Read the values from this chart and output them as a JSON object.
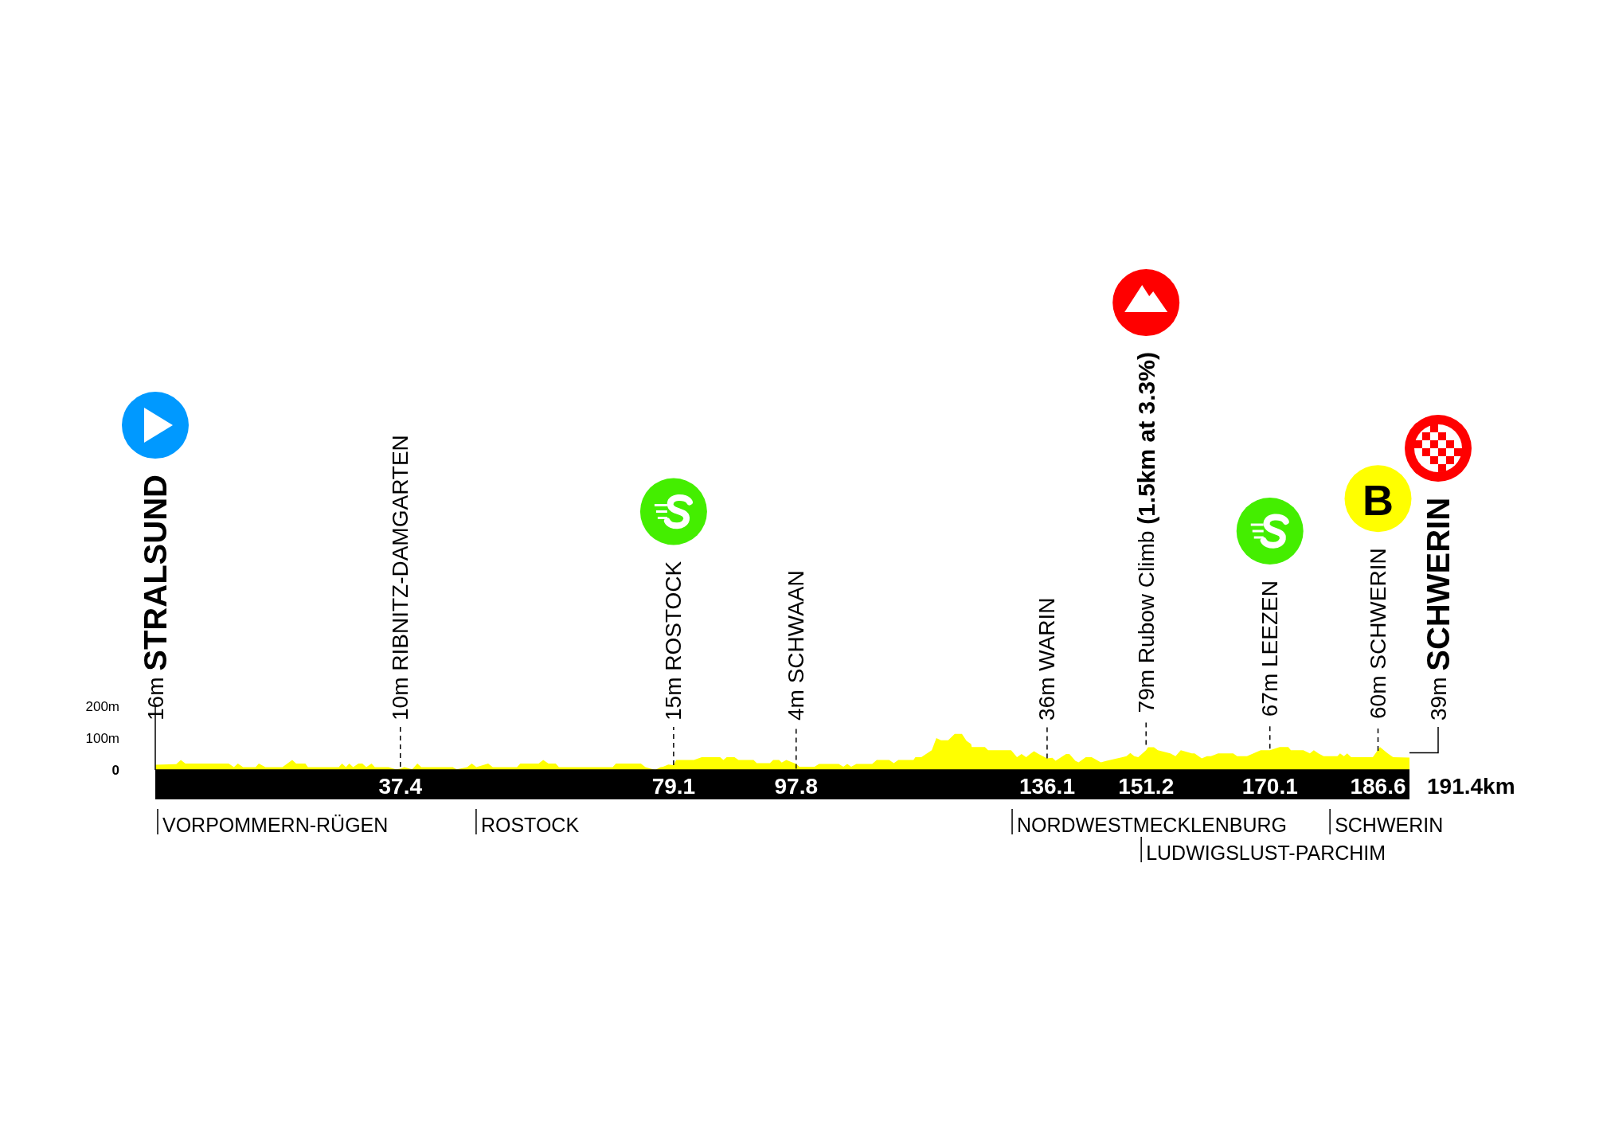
{
  "chart_data": {
    "type": "area",
    "xlim": [
      0,
      191.4
    ],
    "xticks": [
      37.4,
      79.1,
      97.8,
      136.1,
      151.2,
      170.1,
      186.6
    ],
    "ylim": [
      0,
      200
    ],
    "yticks": [
      {
        "value": 0,
        "label": "0"
      },
      {
        "value": 100,
        "label": "100m"
      },
      {
        "value": 200,
        "label": "200m"
      }
    ],
    "series": [
      {
        "color": "#ffff00",
        "x": [
          0,
          3.2,
          3.9,
          4.6,
          11.2,
          12.0,
          12.6,
          13.4,
          15.3,
          15.8,
          16.8,
          19.4,
          20.9,
          21.5,
          22.9,
          23.3,
          28.0,
          28.5,
          29.1,
          29.6,
          30.2,
          31.0,
          31.6,
          32.2,
          33.0,
          33.5,
          35.6,
          36.7,
          37.4,
          38.0,
          39.2,
          40.0,
          40.6,
          45.4,
          46.0,
          47.6,
          48.3,
          49,
          50.8,
          51.5,
          55.2,
          55.7,
          58.5,
          59.2,
          60,
          61.1,
          61.6,
          69.8,
          70.3,
          74.1,
          74.8,
          76.3,
          77.1,
          77.5,
          78.3,
          79.1,
          79.5,
          82.2,
          83.4,
          86.2,
          86.7,
          87.2,
          88.4,
          89,
          91.3,
          91.8,
          93.8,
          94.3,
          95.2,
          95.6,
          96.3,
          97.8,
          98.3,
          100.6,
          101.3,
          104.3,
          105,
          105.6,
          106.2,
          107,
          109.4,
          110.1,
          112,
          112.7,
          113.4,
          115.7,
          116,
          116.9,
          118.5,
          119.2,
          119.9,
          121,
          122,
          123.1,
          123.8,
          124.5,
          124.6,
          126.6,
          127.1,
          130.6,
          131.5,
          132.2,
          132.9,
          133.5,
          134.1,
          134.8,
          136.1,
          136.9,
          137.4,
          138.1,
          139,
          139.5,
          140.4,
          140.9,
          142,
          142.9,
          144.3,
          145.2,
          147.6,
          148.2,
          148.8,
          149.4,
          150,
          151.2,
          151.5,
          152.4,
          153,
          154.9,
          155.7,
          156.5,
          158.2,
          158.6,
          159.7,
          160.5,
          161.1,
          162.2,
          164.5,
          165.1,
          166.6,
          168.7,
          170.1,
          171.6,
          172.9,
          173.3,
          175.2,
          176.2,
          176.8,
          177.5,
          178.3,
          180.4,
          180.8,
          181.4,
          181.9,
          182.5,
          185.8,
          186.9,
          188,
          188.9,
          191.4
        ],
        "values": [
          16,
          18,
          31,
          20,
          20,
          9,
          20,
          9,
          9,
          20,
          9,
          9,
          31,
          20,
          20,
          9,
          9,
          20,
          9,
          20,
          9,
          20,
          20,
          9,
          20,
          9,
          9,
          2,
          4,
          9,
          2,
          20,
          9,
          9,
          2,
          9,
          20,
          9,
          20,
          9,
          9,
          20,
          20,
          31,
          20,
          20,
          9,
          9,
          20,
          20,
          9,
          0,
          9,
          10,
          17,
          15,
          31,
          31,
          40,
          40,
          31,
          40,
          40,
          31,
          31,
          21,
          21,
          31,
          31,
          23,
          31,
          19,
          10,
          10,
          19,
          19,
          10,
          19,
          10,
          19,
          19,
          31,
          31,
          21,
          31,
          31,
          40,
          40,
          62,
          100,
          93,
          93,
          113,
          113,
          91,
          81,
          72,
          72,
          62,
          62,
          40,
          50,
          40,
          50,
          59,
          50,
          36,
          38,
          29,
          38,
          50,
          50,
          29,
          24,
          40,
          40,
          24,
          29,
          40,
          43,
          53,
          43,
          40,
          62,
          71,
          71,
          62,
          52,
          43,
          62,
          52,
          52,
          36,
          43,
          43,
          52,
          52,
          43,
          43,
          62,
          62,
          72,
          72,
          62,
          62,
          52,
          62,
          52,
          43,
          43,
          52,
          43,
          52,
          40,
          40,
          72,
          53,
          40,
          39
        ]
      }
    ],
    "annotations": [
      {
        "text": "16m STRALSUND",
        "x": 0,
        "y": 16
      },
      {
        "text": "10m RIBNITZ-DAMGARTEN",
        "x": 37.4,
        "y": 10
      },
      {
        "text": "15m ROSTOCK",
        "x": 79.1,
        "y": 15
      },
      {
        "text": "4m SCHWAAN",
        "x": 97.8,
        "y": 4
      },
      {
        "text": "36m WARIN",
        "x": 136.1,
        "y": 36
      },
      {
        "text": "79m Rubow Climb (1.5km at 3.3%)",
        "x": 151.2,
        "y": 79
      },
      {
        "text": "67m LEEZEN",
        "x": 170.1,
        "y": 67
      },
      {
        "text": "60m SCHWERIN",
        "x": 186.6,
        "y": 60
      },
      "B",
      {
        "text": "39m SCHWERIN",
        "x": 191.4,
        "y": 39
      },
      "191.4km"
    ],
    "ref_lines": [
      {
        "axis": "x",
        "value": 0,
        "label": "VORPOMMERN-RÜGEN"
      },
      {
        "axis": "x",
        "value": 48.6,
        "label": "ROSTOCK"
      },
      {
        "axis": "x",
        "value": 130.4,
        "label": "NORDWESTMECKLENBURG"
      },
      {
        "axis": "x",
        "value": 150.1,
        "label": "LUDWIGSLUST-PARCHIM"
      },
      {
        "axis": "x",
        "value": 178.9,
        "label": "SCHWERIN"
      }
    ]
  }
}
